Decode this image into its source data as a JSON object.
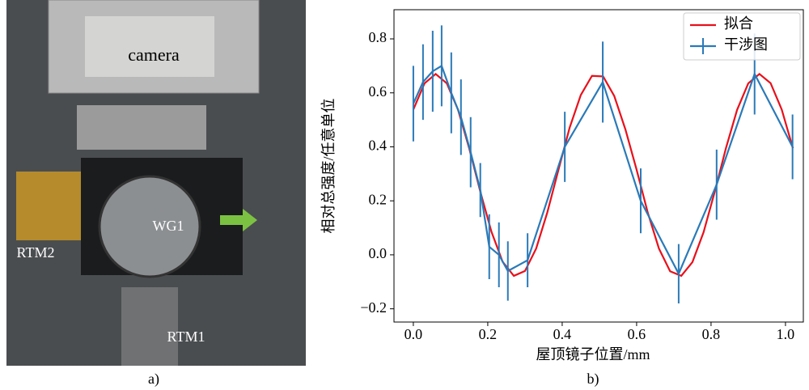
{
  "photo": {
    "labels": [
      "camera",
      "WG1",
      "RTM2",
      "RTM1"
    ],
    "caption": "a)"
  },
  "chart_data": {
    "type": "line",
    "caption": "b)",
    "xlabel": "屋顶镜子位置/mm",
    "ylabel": "相对总强度/任意单位",
    "xlim": [
      -0.052,
      1.048
    ],
    "ylim": [
      -0.249,
      0.908
    ],
    "xticks": [
      {
        "value": 0,
        "label": "0.0"
      },
      0.2,
      0.4,
      0.6,
      0.8,
      {
        "value": 1,
        "label": "1.0"
      }
    ],
    "yticks": [
      {
        "value": -0.2,
        "label": "−0.2"
      },
      {
        "value": 0,
        "label": "0.0"
      },
      0.2,
      0.4,
      0.6,
      0.8
    ],
    "legend": "upper right",
    "series": [
      {
        "name": "拟合",
        "color": "#e8101b",
        "x": [
          0,
          0.03,
          0.06,
          0.09,
          0.12,
          0.15,
          0.18,
          0.21,
          0.24,
          0.27,
          0.3,
          0.33,
          0.36,
          0.39,
          0.42,
          0.45,
          0.48,
          0.51,
          0.54,
          0.57,
          0.6,
          0.63,
          0.66,
          0.69,
          0.72,
          0.75,
          0.78,
          0.81,
          0.84,
          0.87,
          0.9,
          0.93,
          0.96,
          0.99,
          1.02
        ],
        "values": [
          0.538,
          0.635,
          0.67,
          0.635,
          0.538,
          0.395,
          0.234,
          0.085,
          -0.026,
          -0.078,
          -0.06,
          0.023,
          0.157,
          0.315,
          0.471,
          0.592,
          0.663,
          0.661,
          0.588,
          0.464,
          0.315,
          0.156,
          0.023,
          -0.061,
          -0.078,
          -0.027,
          0.084,
          0.234,
          0.395,
          0.537,
          0.635,
          0.67,
          0.636,
          0.538,
          0.395
        ]
      },
      {
        "name": "干涉图",
        "color": "#2a7ab8",
        "x": [
          0,
          0.026,
          0.052,
          0.076,
          0.102,
          0.128,
          0.154,
          0.18,
          0.204,
          0.23,
          0.254,
          0.307,
          0.407,
          0.509,
          0.611,
          0.713,
          0.815,
          0.917,
          1.019
        ],
        "values": [
          0.56,
          0.64,
          0.68,
          0.7,
          0.6,
          0.51,
          0.38,
          0.24,
          0.03,
          0.0,
          -0.06,
          -0.02,
          0.4,
          0.64,
          0.2,
          -0.07,
          0.26,
          0.67,
          0.4
        ],
        "errors": [
          0.14,
          0.14,
          0.15,
          0.15,
          0.15,
          0.14,
          0.13,
          0.1,
          0.12,
          0.12,
          0.11,
          0.1,
          0.13,
          0.15,
          0.12,
          0.11,
          0.13,
          0.15,
          0.12
        ]
      }
    ]
  }
}
